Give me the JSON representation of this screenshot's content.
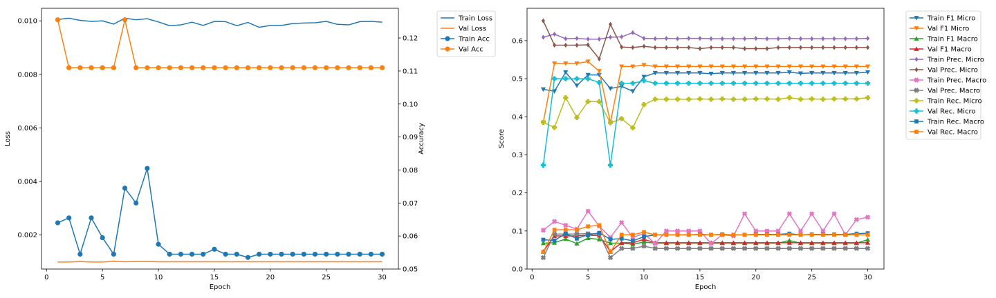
{
  "chart_data": [
    {
      "type": "line",
      "xlabel": "Epoch",
      "ylabel": "Loss",
      "y2label": "Accuracy",
      "xlim": [
        -0.45,
        31.45
      ],
      "ylim": [
        0.00073,
        0.01047
      ],
      "y2lim": [
        0.05,
        0.129
      ],
      "xticks": [
        0,
        5,
        10,
        15,
        20,
        25,
        30
      ],
      "yticks": [
        0.002,
        0.004,
        0.006,
        0.008,
        0.01
      ],
      "ytick_labels": [
        "0.002",
        "0.004",
        "0.006",
        "0.008",
        "0.010"
      ],
      "y2ticks": [
        0.05,
        0.06,
        0.07,
        0.08,
        0.09,
        0.1,
        0.11,
        0.12
      ],
      "y2tick_labels": [
        "0.05",
        "0.06",
        "0.07",
        "0.08",
        "0.09",
        "0.10",
        "0.11",
        "0.12"
      ],
      "grid": false,
      "legend_position": "outside-top-right",
      "x": [
        1,
        2,
        3,
        4,
        5,
        6,
        7,
        8,
        9,
        10,
        11,
        12,
        13,
        14,
        15,
        16,
        17,
        18,
        19,
        20,
        21,
        22,
        23,
        24,
        25,
        26,
        27,
        28,
        29,
        30
      ],
      "series": [
        {
          "name": "Train Loss",
          "color": "#1f77b4",
          "marker": "none",
          "axis": "left",
          "values": [
            0.01005,
            0.0101,
            0.01002,
            0.00998,
            0.01,
            0.00988,
            0.0101,
            0.01004,
            0.01008,
            0.00996,
            0.00982,
            0.00985,
            0.00995,
            0.00983,
            0.00998,
            0.00997,
            0.00982,
            0.00994,
            0.00976,
            0.00983,
            0.00983,
            0.0099,
            0.00992,
            0.00993,
            0.00998,
            0.00987,
            0.00985,
            0.00997,
            0.00998,
            0.00995
          ]
        },
        {
          "name": "Val Loss",
          "color": "#ff7f0e",
          "marker": "none",
          "axis": "left",
          "values": [
            0.00099,
            0.00099,
            0.00101,
            0.00099,
            0.00099,
            0.00102,
            0.001,
            0.00101,
            0.00101,
            0.001,
            0.001,
            0.001,
            0.001,
            0.001,
            0.001,
            0.001,
            0.001,
            0.001,
            0.001,
            0.001,
            0.001,
            0.001,
            0.001,
            0.001,
            0.001,
            0.001,
            0.001,
            0.001,
            0.001,
            0.001
          ]
        },
        {
          "name": "Train Acc",
          "color": "#1f77b4",
          "marker": "circle",
          "axis": "right",
          "values": [
            0.064,
            0.0655,
            0.0545,
            0.0655,
            0.0595,
            0.0545,
            0.0745,
            0.07,
            0.0805,
            0.0575,
            0.0545,
            0.0545,
            0.0545,
            0.0545,
            0.056,
            0.0545,
            0.0545,
            0.0535,
            0.0545,
            0.0545,
            0.0545,
            0.0545,
            0.0545,
            0.0545,
            0.0545,
            0.0545,
            0.0545,
            0.0545,
            0.0545,
            0.0545
          ]
        },
        {
          "name": "Val Acc",
          "color": "#ff7f0e",
          "marker": "circle",
          "axis": "right",
          "values": [
            0.1255,
            0.111,
            0.111,
            0.111,
            0.111,
            0.111,
            0.1255,
            0.111,
            0.111,
            0.111,
            0.111,
            0.111,
            0.111,
            0.111,
            0.111,
            0.111,
            0.111,
            0.111,
            0.111,
            0.111,
            0.111,
            0.111,
            0.111,
            0.111,
            0.111,
            0.111,
            0.111,
            0.111,
            0.111,
            0.111
          ]
        }
      ]
    },
    {
      "type": "line",
      "xlabel": "Epoch",
      "ylabel": "Score",
      "xlim": [
        -0.45,
        31.45
      ],
      "ylim": [
        0.0,
        0.685
      ],
      "xticks": [
        0,
        5,
        10,
        15,
        20,
        25,
        30
      ],
      "yticks": [
        0.0,
        0.1,
        0.2,
        0.3,
        0.4,
        0.5,
        0.6
      ],
      "ytick_labels": [
        "0.0",
        "0.1",
        "0.2",
        "0.3",
        "0.4",
        "0.5",
        "0.6"
      ],
      "grid": false,
      "legend_position": "outside-top-right",
      "x": [
        1,
        2,
        3,
        4,
        5,
        6,
        7,
        8,
        9,
        10,
        11,
        12,
        13,
        14,
        15,
        16,
        17,
        18,
        19,
        20,
        21,
        22,
        23,
        24,
        25,
        26,
        27,
        28,
        29,
        30
      ],
      "series": [
        {
          "name": "Train F1 Micro",
          "color": "#1f77b4",
          "marker": "triangle-down",
          "values": [
            0.472,
            0.467,
            0.517,
            0.482,
            0.51,
            0.51,
            0.474,
            0.48,
            0.467,
            0.505,
            0.515,
            0.515,
            0.515,
            0.515,
            0.515,
            0.513,
            0.515,
            0.515,
            0.515,
            0.515,
            0.515,
            0.515,
            0.517,
            0.514,
            0.515,
            0.515,
            0.515,
            0.515,
            0.515,
            0.517
          ]
        },
        {
          "name": "Val F1 Micro",
          "color": "#ff7f0e",
          "marker": "triangle-down",
          "values": [
            0.385,
            0.54,
            0.54,
            0.54,
            0.545,
            0.52,
            0.385,
            0.532,
            0.532,
            0.536,
            0.532,
            0.532,
            0.532,
            0.532,
            0.532,
            0.532,
            0.532,
            0.532,
            0.532,
            0.532,
            0.532,
            0.532,
            0.532,
            0.532,
            0.532,
            0.532,
            0.532,
            0.532,
            0.532,
            0.532
          ]
        },
        {
          "name": "Train F1 Macro",
          "color": "#2ca02c",
          "marker": "triangle-up",
          "values": [
            0.068,
            0.069,
            0.079,
            0.067,
            0.081,
            0.078,
            0.068,
            0.068,
            0.065,
            0.071,
            0.068,
            0.068,
            0.068,
            0.068,
            0.068,
            0.068,
            0.068,
            0.068,
            0.068,
            0.068,
            0.068,
            0.068,
            0.075,
            0.068,
            0.068,
            0.068,
            0.068,
            0.068,
            0.068,
            0.077
          ]
        },
        {
          "name": "Val F1 Macro",
          "color": "#d62728",
          "marker": "triangle-up",
          "values": [
            0.046,
            0.087,
            0.087,
            0.087,
            0.089,
            0.088,
            0.046,
            0.069,
            0.069,
            0.078,
            0.069,
            0.069,
            0.069,
            0.069,
            0.069,
            0.069,
            0.069,
            0.069,
            0.069,
            0.069,
            0.069,
            0.069,
            0.069,
            0.069,
            0.069,
            0.069,
            0.069,
            0.069,
            0.069,
            0.069
          ]
        },
        {
          "name": "Train Prec. Micro",
          "color": "#9467bd",
          "marker": "diamond",
          "values": [
            0.609,
            0.617,
            0.605,
            0.606,
            0.604,
            0.604,
            0.609,
            0.61,
            0.621,
            0.606,
            0.605,
            0.606,
            0.605,
            0.606,
            0.606,
            0.605,
            0.605,
            0.605,
            0.605,
            0.606,
            0.605,
            0.605,
            0.606,
            0.605,
            0.605,
            0.605,
            0.605,
            0.605,
            0.605,
            0.606
          ]
        },
        {
          "name": "Val Prec. Micro",
          "color": "#8c564b",
          "marker": "diamond",
          "values": [
            0.652,
            0.588,
            0.588,
            0.588,
            0.589,
            0.552,
            0.643,
            0.583,
            0.582,
            0.585,
            0.582,
            0.582,
            0.582,
            0.582,
            0.579,
            0.582,
            0.582,
            0.582,
            0.579,
            0.579,
            0.579,
            0.582,
            0.582,
            0.582,
            0.582,
            0.582,
            0.582,
            0.582,
            0.582,
            0.582
          ]
        },
        {
          "name": "Train Prec. Macro",
          "color": "#e377c2",
          "marker": "x",
          "values": [
            0.102,
            0.125,
            0.115,
            0.105,
            0.152,
            0.113,
            0.083,
            0.122,
            0.083,
            0.093,
            0.067,
            0.1,
            0.1,
            0.1,
            0.1,
            0.067,
            0.09,
            0.087,
            0.145,
            0.1,
            0.1,
            0.1,
            0.145,
            0.1,
            0.145,
            0.1,
            0.145,
            0.09,
            0.13,
            0.136
          ]
        },
        {
          "name": "Val Prec. Macro",
          "color": "#7f7f7f",
          "marker": "x",
          "values": [
            0.03,
            0.092,
            0.092,
            0.092,
            0.093,
            0.092,
            0.03,
            0.054,
            0.054,
            0.06,
            0.054,
            0.054,
            0.054,
            0.054,
            0.054,
            0.054,
            0.054,
            0.054,
            0.054,
            0.054,
            0.054,
            0.054,
            0.054,
            0.054,
            0.054,
            0.054,
            0.054,
            0.054,
            0.054,
            0.054
          ]
        },
        {
          "name": "Train Rec. Micro",
          "color": "#bcbd22",
          "marker": "plus",
          "values": [
            0.385,
            0.372,
            0.45,
            0.398,
            0.44,
            0.44,
            0.384,
            0.395,
            0.371,
            0.432,
            0.446,
            0.446,
            0.446,
            0.446,
            0.447,
            0.446,
            0.447,
            0.446,
            0.446,
            0.447,
            0.447,
            0.446,
            0.45,
            0.446,
            0.447,
            0.446,
            0.447,
            0.447,
            0.447,
            0.45
          ]
        },
        {
          "name": "Val Rec. Micro",
          "color": "#17becf",
          "marker": "plus",
          "values": [
            0.273,
            0.5,
            0.5,
            0.5,
            0.5,
            0.49,
            0.273,
            0.488,
            0.488,
            0.495,
            0.488,
            0.488,
            0.488,
            0.488,
            0.488,
            0.488,
            0.488,
            0.488,
            0.488,
            0.488,
            0.488,
            0.488,
            0.488,
            0.488,
            0.488,
            0.488,
            0.488,
            0.488,
            0.488,
            0.488
          ]
        },
        {
          "name": "Train Rec. Macro",
          "color": "#1f77b4",
          "marker": "square",
          "values": [
            0.077,
            0.075,
            0.093,
            0.08,
            0.09,
            0.095,
            0.078,
            0.08,
            0.074,
            0.085,
            0.09,
            0.09,
            0.09,
            0.09,
            0.091,
            0.09,
            0.091,
            0.09,
            0.09,
            0.091,
            0.091,
            0.091,
            0.093,
            0.09,
            0.091,
            0.091,
            0.091,
            0.091,
            0.093,
            0.094
          ]
        },
        {
          "name": "Val Rec. Macro",
          "color": "#ff7f0e",
          "marker": "square",
          "values": [
            0.045,
            0.103,
            0.103,
            0.103,
            0.112,
            0.115,
            0.045,
            0.09,
            0.09,
            0.097,
            0.09,
            0.09,
            0.09,
            0.09,
            0.09,
            0.09,
            0.09,
            0.09,
            0.09,
            0.09,
            0.09,
            0.09,
            0.09,
            0.09,
            0.09,
            0.09,
            0.09,
            0.09,
            0.09,
            0.09
          ]
        }
      ]
    }
  ]
}
